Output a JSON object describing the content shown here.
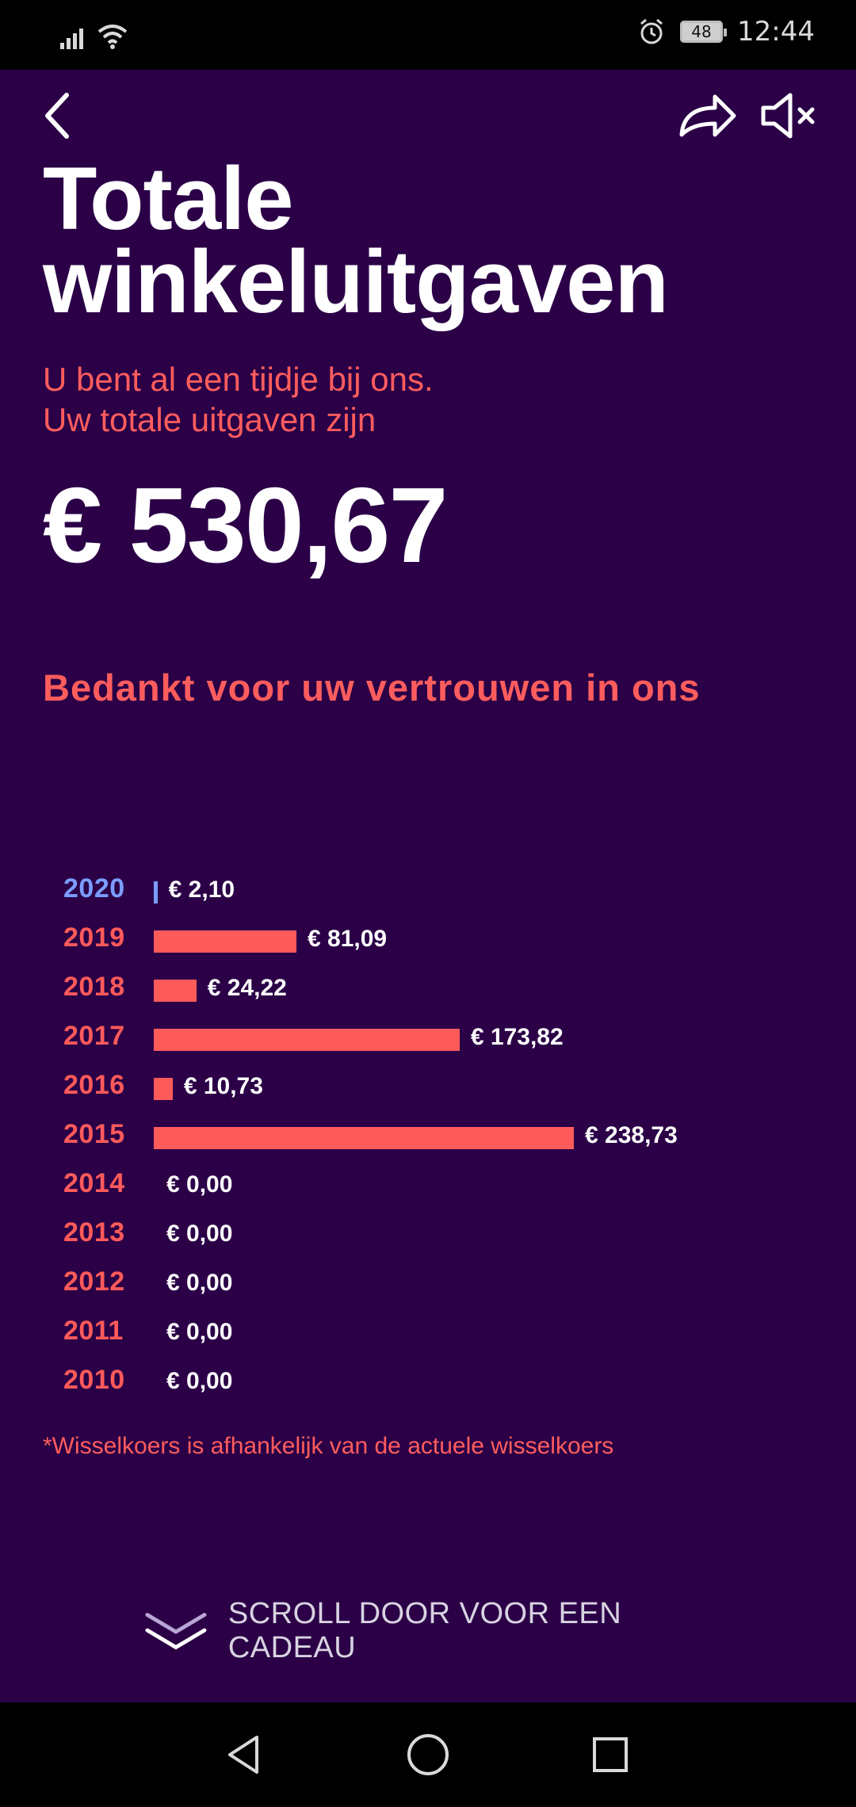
{
  "status_bar": {
    "time": "12:44",
    "battery": "48",
    "icons": [
      "signal-icon",
      "wifi-icon",
      "alarm-icon",
      "battery-icon"
    ]
  },
  "app": {
    "title": "Totale winkeluitgaven",
    "subtitle_line1": "U bent al een tijdje bij ons.",
    "subtitle_line2": "Uw totale uitgaven zijn",
    "total": "€ 530,67",
    "thanks": "Bedankt voor uw vertrouwen in ons",
    "note": "*Wisselkoers is afhankelijk van de actuele wisselkoers",
    "scroll_label": "SCROLL DOOR VOOR EEN CADEAU",
    "colors": {
      "background": "#2b0047",
      "accent": "#ff5a5a",
      "current_year": "#7b9dff",
      "text": "#ffffff"
    },
    "icons": [
      "back-icon",
      "share-icon",
      "mute-icon",
      "chevron-down-icon"
    ]
  },
  "chart_data": {
    "type": "bar",
    "orientation": "horizontal",
    "categories": [
      "2020",
      "2019",
      "2018",
      "2017",
      "2016",
      "2015",
      "2014",
      "2013",
      "2012",
      "2011",
      "2010"
    ],
    "values": [
      2.1,
      81.09,
      24.22,
      173.82,
      10.73,
      238.73,
      0.0,
      0.0,
      0.0,
      0.0,
      0.0
    ],
    "labels": [
      "€ 2,10",
      "€ 81,09",
      "€ 24,22",
      "€ 173,82",
      "€ 10,73",
      "€ 238,73",
      "€ 0,00",
      "€ 0,00",
      "€ 0,00",
      "€ 0,00",
      "€ 0,00"
    ],
    "highlight_category": "2020"
  },
  "nav_bar": {
    "icons": [
      "back-triangle-icon",
      "home-circle-icon",
      "recents-square-icon"
    ]
  }
}
